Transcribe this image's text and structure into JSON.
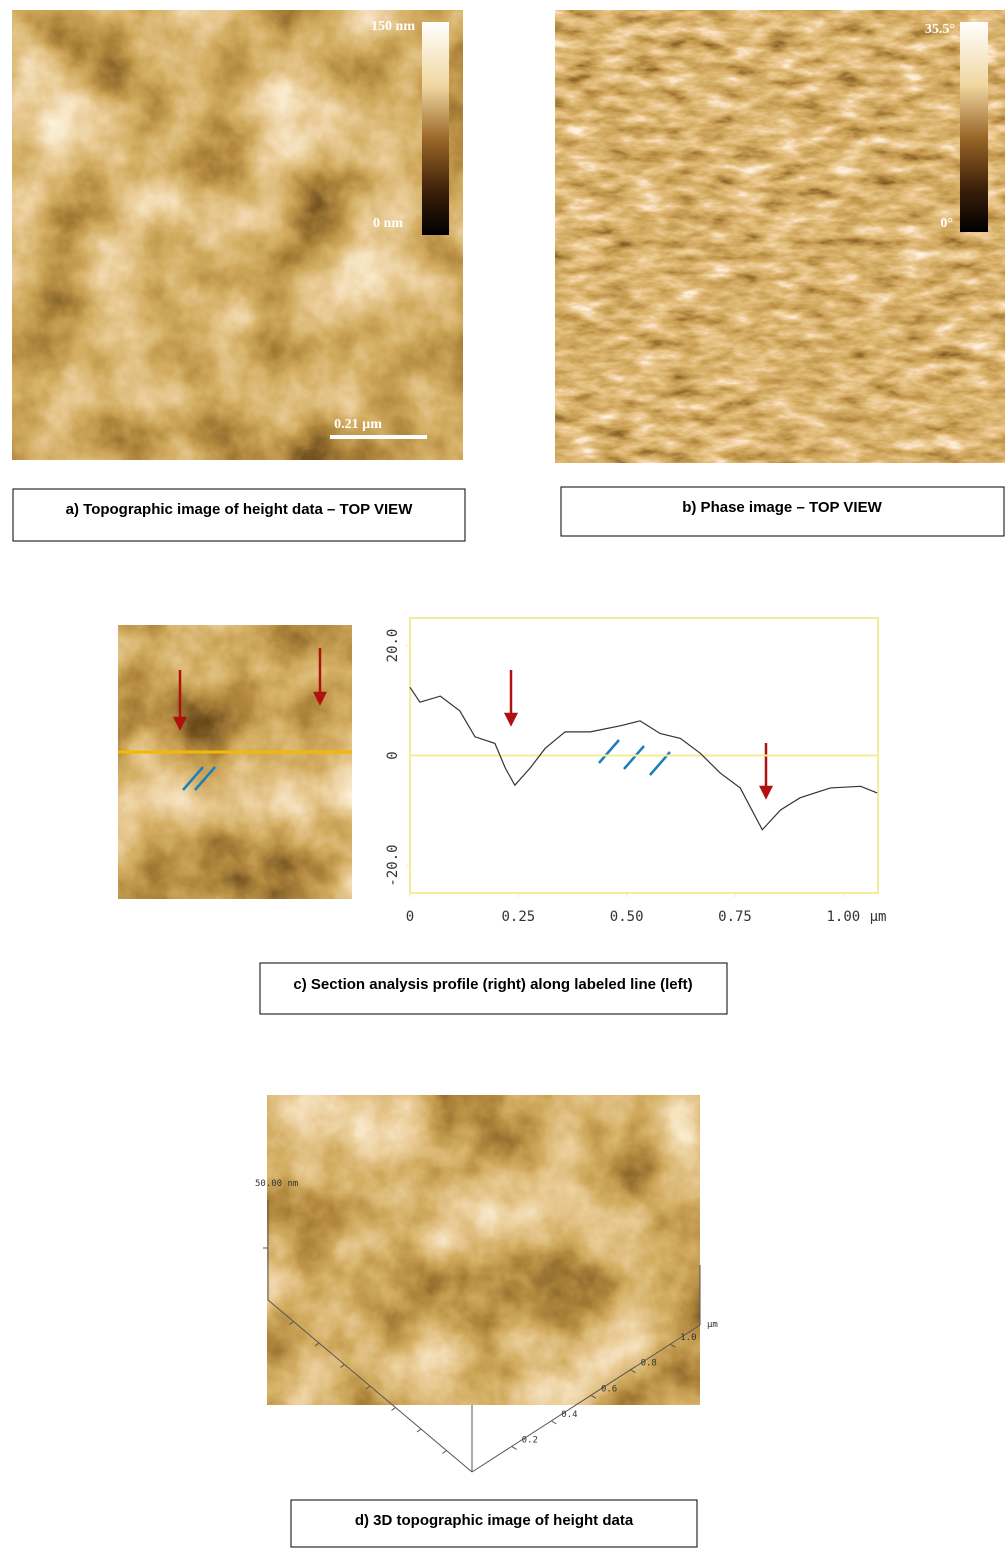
{
  "panel_a": {
    "scale_max": "150 nm",
    "scale_min": "0 nm",
    "scale_bar": "0.21 µm",
    "caption": "a) Topographic image of height data – TOP VIEW"
  },
  "panel_b": {
    "scale_max": "35.5°",
    "scale_min": "0°",
    "caption": "b) Phase image – TOP VIEW"
  },
  "panel_c": {
    "profile": {
      "type": "line",
      "color": "#333333",
      "x": [
        0,
        0.023,
        0.07,
        0.115,
        0.15,
        0.196,
        0.22,
        0.242,
        0.277,
        0.312,
        0.358,
        0.416,
        0.485,
        0.531,
        0.577,
        0.624,
        0.67,
        0.716,
        0.762,
        0.813,
        0.855,
        0.9,
        0.97,
        1.04,
        1.078
      ],
      "values": [
        12.4,
        9.7,
        10.8,
        8.1,
        3.4,
        2.2,
        -2.3,
        -5.4,
        -2.3,
        1.3,
        4.3,
        4.3,
        5.4,
        6.3,
        4,
        3.1,
        0.4,
        -3.2,
        -5.9,
        -13.5,
        -9.9,
        -7.7,
        -5.9,
        -5.6,
        -6.8
      ],
      "xlim": [
        0,
        1.08
      ],
      "ylim": [
        -25,
        25
      ],
      "xticks": [
        0,
        0.25,
        {
          "value": 0.5,
          "label": "0.50"
        },
        0.75,
        {
          "value": 1,
          "label": "1.00"
        }
      ],
      "yticks": [
        {
          "value": -20,
          "label": "-20.0"
        },
        0,
        {
          "value": 20,
          "label": "20.0"
        }
      ],
      "x_unit": "µm"
    },
    "caption": "c) Section analysis profile (right) along labeled line (left)"
  },
  "panel_d": {
    "z_label": "50.00 nm",
    "axis_unit": "µm",
    "xlim": [
      0,
      1.15
    ],
    "axis_ticks": [
      0.2,
      0.4,
      0.6,
      0.8,
      {
        "value": 1,
        "label": "1.0"
      }
    ],
    "caption": "d) 3D topographic image of height data"
  }
}
